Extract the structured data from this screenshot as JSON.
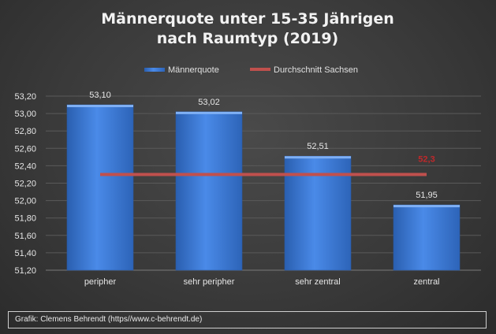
{
  "chart_data": {
    "type": "bar",
    "title_line1": "Männerquote unter 15-35 Jährigen",
    "title_line2": "nach Raumtyp (2019)",
    "categories": [
      "peripher",
      "sehr peripher",
      "sehr zentral",
      "zentral"
    ],
    "series": [
      {
        "name": "Männerquote",
        "values": [
          53.1,
          53.02,
          52.51,
          51.95
        ],
        "labels": [
          "53,10",
          "53,02",
          "52,51",
          "51,95"
        ],
        "color": "#3a78d6"
      }
    ],
    "average": {
      "name": "Durchschnitt Sachsen",
      "value": 52.3,
      "label": "52,3",
      "color": "#c0504d"
    },
    "yticks": [
      "51,20",
      "51,40",
      "51,60",
      "51,80",
      "52,00",
      "52,20",
      "52,40",
      "52,60",
      "52,80",
      "53,00",
      "53,20"
    ],
    "ylim": [
      51.2,
      53.2
    ],
    "grid": true,
    "legend_position": "top"
  },
  "footer": {
    "text": "Grafik: Clemens Behrendt (https//www.c-behrendt.de)"
  }
}
